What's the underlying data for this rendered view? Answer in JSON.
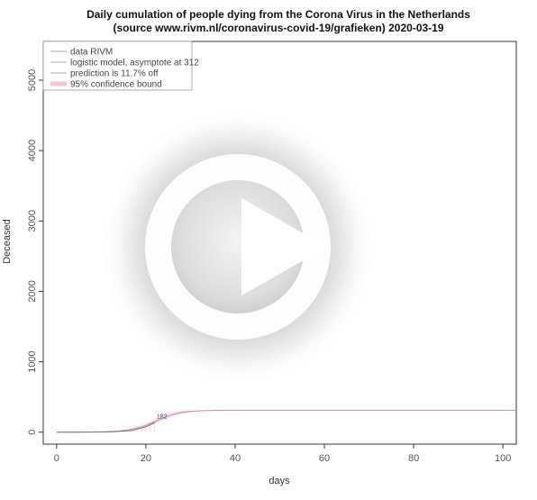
{
  "chart_data": {
    "type": "line",
    "title": "Daily cumulation of people dying from the Corona Virus in the Netherlands",
    "subtitle": "(source www.rivm.nl/coronavirus-covid-19/grafieken)  2020-03-19",
    "xlabel": "days",
    "ylabel": "Deceased",
    "xlim": [
      -3,
      103
    ],
    "ylim": [
      -170,
      5550
    ],
    "xticks": [
      0,
      20,
      40,
      60,
      80,
      100
    ],
    "yticks": [
      0,
      1000,
      2000,
      3000,
      4000,
      5000
    ],
    "grid": false,
    "legend_position": "top-left",
    "legend": [
      {
        "label": "data RIVM",
        "color": "#aaaaaa",
        "style": "line"
      },
      {
        "label": "logistic model, asymptote at 312",
        "color": "#aaaaaa",
        "style": "line"
      },
      {
        "label": "prediction is 11.7% off",
        "color": "#aaaaaa",
        "style": "line"
      },
      {
        "label": "95% confidence bound",
        "color": "#f7c6d6",
        "style": "band"
      }
    ],
    "series": [
      {
        "name": "logistic model, asymptote at 312",
        "color": "#c98aa6",
        "x": [
          0,
          4,
          8,
          10,
          12,
          14,
          16,
          18,
          20,
          22,
          24,
          26,
          28,
          30,
          32,
          36,
          40,
          50,
          60,
          70,
          80,
          90,
          100,
          103
        ],
        "y": [
          0,
          1,
          3,
          5,
          9,
          16,
          30,
          55,
          95,
          150,
          205,
          250,
          280,
          296,
          304,
          310,
          311,
          312,
          312,
          312,
          312,
          312,
          312,
          312
        ]
      },
      {
        "name": "data RIVM",
        "color": "#777777",
        "x": [
          0,
          5,
          10,
          12,
          14,
          16,
          17,
          18,
          19,
          20,
          21,
          22
        ],
        "y": [
          0,
          0,
          2,
          5,
          10,
          20,
          24,
          43,
          58,
          76,
          106,
          136
        ]
      }
    ],
    "confidence_band": {
      "x": [
        14,
        16,
        18,
        20,
        22,
        24,
        26,
        28,
        30
      ],
      "lower": [
        6,
        18,
        40,
        75,
        120,
        175,
        225,
        262,
        285
      ],
      "upper": [
        28,
        48,
        80,
        125,
        180,
        240,
        282,
        305,
        310
      ]
    },
    "annotations": [
      {
        "x": 22,
        "y": 182,
        "text": "182"
      }
    ]
  },
  "overlay": {
    "play_icon": "play-icon",
    "circle_color": "#ffffff"
  }
}
